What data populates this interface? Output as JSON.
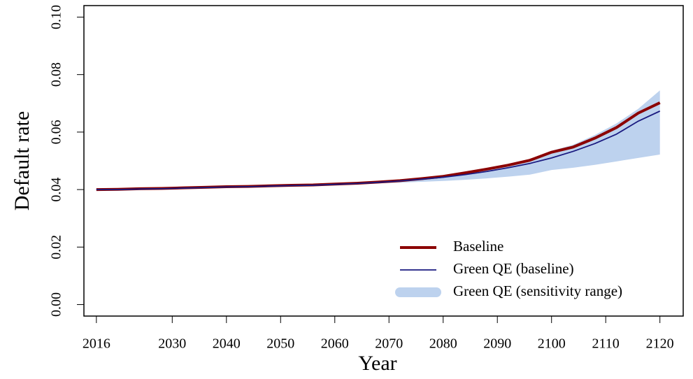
{
  "chart_data": {
    "type": "line",
    "x_label": "Year",
    "y_label": "Default rate",
    "x": [
      2016,
      2020,
      2024,
      2028,
      2032,
      2036,
      2040,
      2044,
      2048,
      2052,
      2056,
      2060,
      2064,
      2068,
      2072,
      2076,
      2080,
      2084,
      2088,
      2092,
      2096,
      2100,
      2104,
      2108,
      2112,
      2116,
      2120
    ],
    "series": [
      {
        "name": "Baseline",
        "color": "#8b0000",
        "values": [
          0.04,
          0.0401,
          0.0403,
          0.0404,
          0.0406,
          0.0408,
          0.041,
          0.0411,
          0.0413,
          0.0415,
          0.0416,
          0.0419,
          0.0422,
          0.0426,
          0.0431,
          0.0438,
          0.0446,
          0.0458,
          0.0471,
          0.0485,
          0.0502,
          0.053,
          0.0548,
          0.0579,
          0.0616,
          0.0666,
          0.0702
        ]
      },
      {
        "name": "Green QE (baseline)",
        "color": "#1a1a80",
        "values": [
          0.04,
          0.04,
          0.0402,
          0.0403,
          0.0405,
          0.0407,
          0.0409,
          0.041,
          0.0412,
          0.0414,
          0.0415,
          0.0418,
          0.0421,
          0.0425,
          0.043,
          0.0436,
          0.0443,
          0.0452,
          0.0463,
          0.0476,
          0.0491,
          0.051,
          0.0533,
          0.056,
          0.0593,
          0.0638,
          0.0673
        ]
      },
      {
        "name": "Green QE (sensitivity range)",
        "color": "#bdd2ee",
        "upper": [
          0.0401,
          0.0402,
          0.0404,
          0.0405,
          0.0407,
          0.0409,
          0.0411,
          0.0412,
          0.0414,
          0.0416,
          0.0417,
          0.042,
          0.0423,
          0.0427,
          0.0432,
          0.044,
          0.0448,
          0.046,
          0.0473,
          0.0488,
          0.0506,
          0.0535,
          0.0556,
          0.059,
          0.063,
          0.0681,
          0.0745
        ],
        "lower": [
          0.0399,
          0.0399,
          0.0401,
          0.0402,
          0.0404,
          0.0406,
          0.0408,
          0.0409,
          0.0411,
          0.0413,
          0.0414,
          0.0418,
          0.042,
          0.0422,
          0.0424,
          0.0427,
          0.043,
          0.0434,
          0.0439,
          0.0445,
          0.0452,
          0.0468,
          0.0476,
          0.0486,
          0.0498,
          0.051,
          0.0522
        ]
      }
    ],
    "xlim": [
      2013.7,
      2124.3
    ],
    "xticks": [
      2016,
      2030,
      2040,
      2050,
      2060,
      2070,
      2080,
      2090,
      2100,
      2110,
      2120
    ],
    "ylim": [
      -0.004,
      0.104
    ],
    "yticks": [
      {
        "value": 0,
        "label": "0.00"
      },
      {
        "value": 0.02,
        "label": "0.02"
      },
      {
        "value": 0.04,
        "label": "0.04"
      },
      {
        "value": 0.06,
        "label": "0.06"
      },
      {
        "value": 0.08,
        "label": "0.08"
      },
      {
        "value": 0.1,
        "label": "0.10"
      }
    ],
    "legend": "bottom-right"
  }
}
